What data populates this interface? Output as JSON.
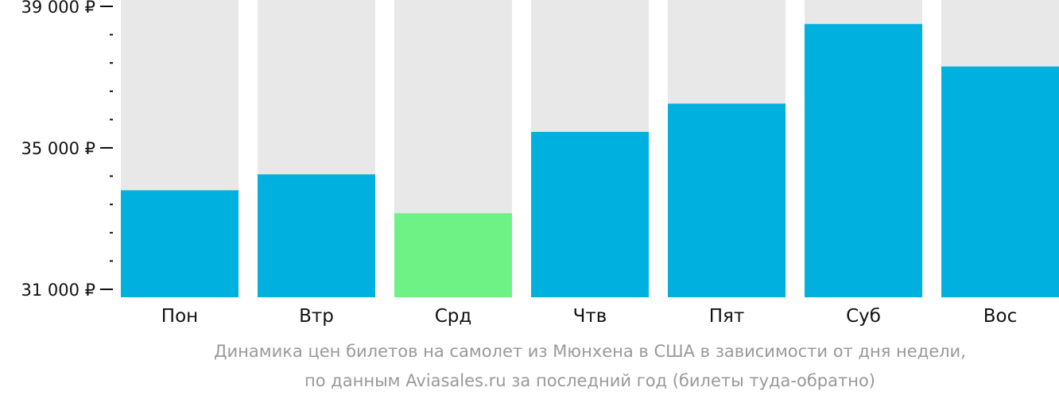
{
  "chart_data": {
    "type": "bar",
    "categories": [
      "Пон",
      "Втр",
      "Срд",
      "Чтв",
      "Пят",
      "Суб",
      "Вос"
    ],
    "values": [
      33800,
      34250,
      33150,
      35450,
      36250,
      38500,
      37300
    ],
    "ylim": [
      31000,
      39000
    ],
    "y_major_ticks": [
      31000,
      35000,
      39000
    ],
    "y_tick_labels": [
      "31 000 ₽",
      "35 000 ₽",
      "39 000 ₽"
    ],
    "y_minor_step": 800,
    "highlight_index": 2,
    "colors": {
      "bar": "#00b0de",
      "highlight": "#6ef286",
      "background": "#e8e8e8",
      "axis": "#111111"
    },
    "caption_line1": "Динамика цен билетов на самолет из Мюнхена в США в зависимости от дня недели,",
    "caption_line2": "по данным Aviasales.ru за последний год (билеты туда-обратно)"
  }
}
